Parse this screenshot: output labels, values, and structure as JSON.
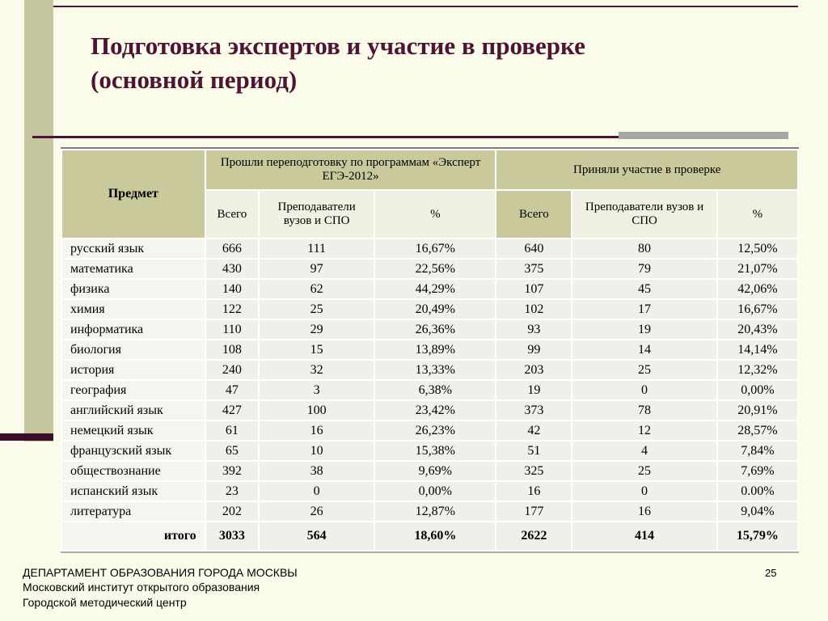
{
  "slide": {
    "title": "Подготовка экспертов и участие в проверке (основной период)",
    "page_number": "25"
  },
  "footer": {
    "lines": [
      "ДЕПАРТАМЕНТ ОБРАЗОВАНИЯ ГОРОДА МОСКВЫ",
      "Московский институт открытого образования",
      "Городской методический центр"
    ]
  },
  "colors": {
    "accent_maroon": "#4D1434",
    "band_olive": "#C6C69E",
    "header_olive": "#C9C99C",
    "slide_background": "#FBFBE9",
    "gray_rule": "#A6A6A6"
  },
  "table": {
    "header": {
      "subject": "Предмет",
      "group1": "Прошли переподготовку по программам «Эксперт ЕГЭ-2012»",
      "group2": "Приняли участие в проверке",
      "sub": [
        "Всего",
        "Преподаватели вузов и СПО",
        "%",
        "Всего",
        "Преподаватели вузов и СПО",
        "%"
      ]
    },
    "rows": [
      [
        "русский язык",
        "666",
        "111",
        "16,67%",
        "640",
        "80",
        "12,50%"
      ],
      [
        "математика",
        "430",
        "97",
        "22,56%",
        "375",
        "79",
        "21,07%"
      ],
      [
        "физика",
        "140",
        "62",
        "44,29%",
        "107",
        "45",
        "42,06%"
      ],
      [
        "химия",
        "122",
        "25",
        "20,49%",
        "102",
        "17",
        "16,67%"
      ],
      [
        "информатика",
        "110",
        "29",
        "26,36%",
        "93",
        "19",
        "20,43%"
      ],
      [
        "биология",
        "108",
        "15",
        "13,89%",
        "99",
        "14",
        "14,14%"
      ],
      [
        "история",
        "240",
        "32",
        "13,33%",
        "203",
        "25",
        "12,32%"
      ],
      [
        "география",
        "47",
        "3",
        "6,38%",
        "19",
        "0",
        "0,00%"
      ],
      [
        "английский язык",
        "427",
        "100",
        "23,42%",
        "373",
        "78",
        "20,91%"
      ],
      [
        "немецкий язык",
        "61",
        "16",
        "26,23%",
        "42",
        "12",
        "28,57%"
      ],
      [
        "французский язык",
        "65",
        "10",
        "15,38%",
        "51",
        "4",
        "7,84%"
      ],
      [
        "обществознание",
        "392",
        "38",
        "9,69%",
        "325",
        "25",
        "7,69%"
      ],
      [
        "испанский язык",
        "23",
        "0",
        "0,00%",
        "16",
        "0",
        "0.00%"
      ],
      [
        "литература",
        "202",
        "26",
        "12,87%",
        "177",
        "16",
        "9,04%"
      ]
    ],
    "total": [
      "итого",
      "3033",
      "564",
      "18,60%",
      "2622",
      "414",
      "15,79%"
    ]
  }
}
